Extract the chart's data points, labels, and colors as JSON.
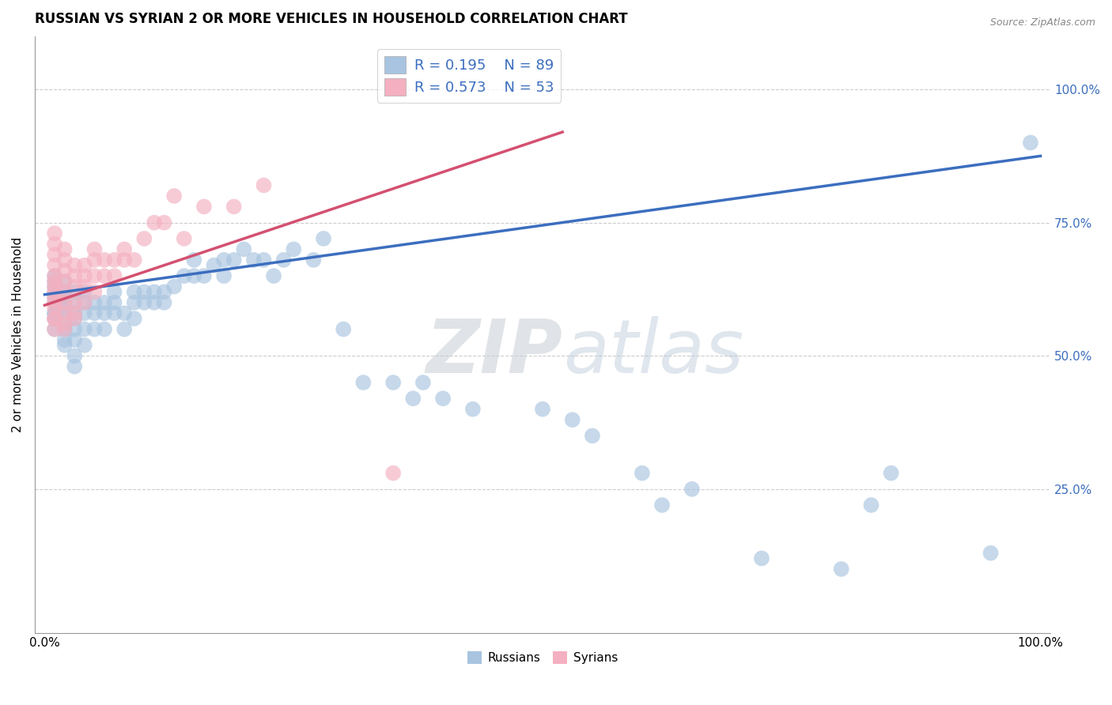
{
  "title": "RUSSIAN VS SYRIAN 2 OR MORE VEHICLES IN HOUSEHOLD CORRELATION CHART",
  "source_text": "Source: ZipAtlas.com",
  "ylabel": "2 or more Vehicles in Household",
  "xlim": [
    0,
    1
  ],
  "ylim": [
    -0.02,
    1.1
  ],
  "ytick_positions": [
    0.25,
    0.5,
    0.75,
    1.0
  ],
  "ytick_labels_right": [
    "25.0%",
    "50.0%",
    "75.0%",
    "100.0%"
  ],
  "watermark_zip": "ZIP",
  "watermark_atlas": "atlas",
  "russian_R": 0.195,
  "russian_N": 89,
  "syrian_R": 0.573,
  "syrian_N": 53,
  "russian_color": "#a8c4e0",
  "syrian_color": "#f4b0c0",
  "russian_line_color": "#3c6ebf",
  "syrian_line_color": "#d45070",
  "legend_label_russian": "Russians",
  "legend_label_syrian": "Syrians",
  "title_fontsize": 12,
  "russian_line_x0": 0.0,
  "russian_line_y0": 0.615,
  "russian_line_x1": 1.0,
  "russian_line_y1": 0.875,
  "syrian_line_x0": 0.0,
  "syrian_line_y0": 0.595,
  "syrian_line_x1": 0.52,
  "syrian_line_y1": 0.92,
  "russian_pts_x": [
    0.01,
    0.01,
    0.01,
    0.01,
    0.01,
    0.01,
    0.01,
    0.01,
    0.01,
    0.01,
    0.02,
    0.02,
    0.02,
    0.02,
    0.02,
    0.02,
    0.02,
    0.02,
    0.02,
    0.02,
    0.03,
    0.03,
    0.03,
    0.03,
    0.03,
    0.03,
    0.03,
    0.03,
    0.04,
    0.04,
    0.04,
    0.04,
    0.04,
    0.05,
    0.05,
    0.05,
    0.06,
    0.06,
    0.06,
    0.07,
    0.07,
    0.07,
    0.08,
    0.08,
    0.09,
    0.09,
    0.09,
    0.1,
    0.1,
    0.11,
    0.11,
    0.12,
    0.12,
    0.13,
    0.14,
    0.15,
    0.15,
    0.16,
    0.17,
    0.18,
    0.18,
    0.19,
    0.2,
    0.21,
    0.22,
    0.23,
    0.24,
    0.25,
    0.27,
    0.28,
    0.3,
    0.32,
    0.35,
    0.37,
    0.38,
    0.4,
    0.43,
    0.5,
    0.53,
    0.55,
    0.6,
    0.62,
    0.65,
    0.72,
    0.8,
    0.83,
    0.85,
    0.95,
    0.99
  ],
  "russian_pts_y": [
    0.58,
    0.61,
    0.63,
    0.65,
    0.62,
    0.6,
    0.58,
    0.57,
    0.55,
    0.64,
    0.6,
    0.62,
    0.64,
    0.61,
    0.59,
    0.58,
    0.56,
    0.55,
    0.53,
    0.52,
    0.57,
    0.6,
    0.62,
    0.58,
    0.55,
    0.53,
    0.5,
    0.48,
    0.58,
    0.6,
    0.62,
    0.55,
    0.52,
    0.6,
    0.58,
    0.55,
    0.58,
    0.6,
    0.55,
    0.6,
    0.62,
    0.58,
    0.58,
    0.55,
    0.6,
    0.62,
    0.57,
    0.6,
    0.62,
    0.62,
    0.6,
    0.62,
    0.6,
    0.63,
    0.65,
    0.65,
    0.68,
    0.65,
    0.67,
    0.68,
    0.65,
    0.68,
    0.7,
    0.68,
    0.68,
    0.65,
    0.68,
    0.7,
    0.68,
    0.72,
    0.55,
    0.45,
    0.45,
    0.42,
    0.45,
    0.42,
    0.4,
    0.4,
    0.38,
    0.35,
    0.28,
    0.22,
    0.25,
    0.12,
    0.1,
    0.22,
    0.28,
    0.13,
    0.9
  ],
  "syrian_pts_x": [
    0.01,
    0.01,
    0.01,
    0.01,
    0.01,
    0.01,
    0.01,
    0.01,
    0.01,
    0.01,
    0.01,
    0.01,
    0.01,
    0.01,
    0.02,
    0.02,
    0.02,
    0.02,
    0.02,
    0.02,
    0.02,
    0.02,
    0.02,
    0.03,
    0.03,
    0.03,
    0.03,
    0.03,
    0.03,
    0.04,
    0.04,
    0.04,
    0.04,
    0.05,
    0.05,
    0.05,
    0.05,
    0.06,
    0.06,
    0.07,
    0.07,
    0.08,
    0.08,
    0.09,
    0.1,
    0.11,
    0.12,
    0.13,
    0.14,
    0.16,
    0.19,
    0.22,
    0.35
  ],
  "syrian_pts_y": [
    0.6,
    0.62,
    0.64,
    0.65,
    0.67,
    0.69,
    0.71,
    0.73,
    0.55,
    0.57,
    0.59,
    0.61,
    0.63,
    0.57,
    0.6,
    0.62,
    0.64,
    0.66,
    0.68,
    0.7,
    0.58,
    0.56,
    0.55,
    0.65,
    0.67,
    0.63,
    0.6,
    0.58,
    0.57,
    0.65,
    0.67,
    0.63,
    0.6,
    0.68,
    0.7,
    0.65,
    0.62,
    0.68,
    0.65,
    0.68,
    0.65,
    0.7,
    0.68,
    0.68,
    0.72,
    0.75,
    0.75,
    0.8,
    0.72,
    0.78,
    0.78,
    0.82,
    0.28
  ]
}
